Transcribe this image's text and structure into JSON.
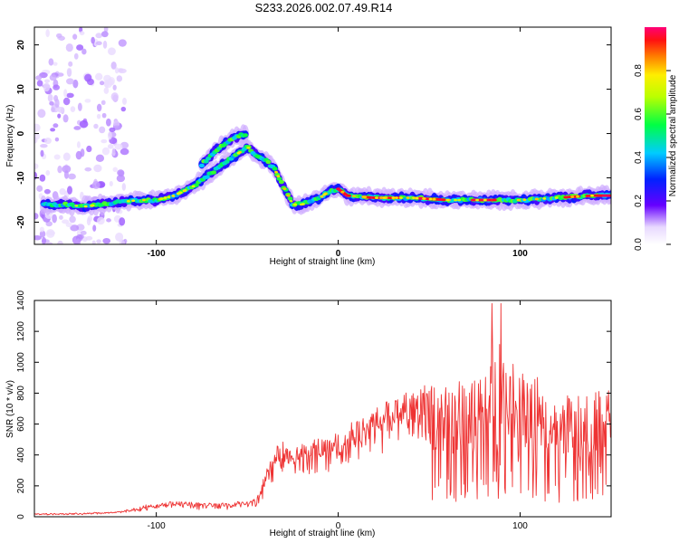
{
  "title": "S233.2026.002.07.49.R14",
  "chart_data": [
    {
      "type": "heatmap",
      "name": "spectrogram",
      "xlabel": "Height of straight line (km)",
      "ylabel": "Frequency (Hz)",
      "xlim": [
        -167,
        150
      ],
      "ylim": [
        -25,
        24
      ],
      "xticks": [
        -100,
        0,
        100
      ],
      "yticks": [
        20,
        10,
        0,
        -10,
        -20
      ],
      "colorbar": {
        "label": "Normalized spectral amplitude",
        "range": [
          0,
          1
        ],
        "ticks": [
          0.0,
          0.2,
          0.4,
          0.6,
          0.8
        ]
      },
      "ridge": {
        "x": [
          -160,
          -150,
          -140,
          -130,
          -120,
          -110,
          -100,
          -90,
          -80,
          -70,
          -60,
          -50,
          -45,
          -40,
          -35,
          -30,
          -25,
          -20,
          -10,
          -5,
          0,
          5,
          20,
          40,
          60,
          80,
          100,
          120,
          140,
          150
        ],
        "y": [
          -16,
          -16,
          -16.5,
          -16,
          -15.5,
          -15,
          -15,
          -14,
          -12,
          -9,
          -6,
          -3,
          -5,
          -6,
          -8,
          -12,
          -16,
          -16,
          -14.5,
          -13,
          -12.5,
          -14,
          -14.5,
          -14.5,
          -15,
          -15,
          -15,
          -14.5,
          -14,
          -14
        ]
      },
      "ridge_upper": {
        "x": [
          -75,
          -70,
          -65,
          -60,
          -55,
          -50
        ],
        "y": [
          -7,
          -5,
          -3,
          -1.5,
          -0.5,
          0
        ]
      }
    },
    {
      "type": "line",
      "name": "snr",
      "xlabel": "Height of straight line (km)",
      "ylabel": "SNR (10 * v/v)",
      "xlim": [
        -167,
        150
      ],
      "ylim": [
        0,
        1400
      ],
      "xticks": [
        -100,
        0,
        100
      ],
      "yticks": [
        0,
        200,
        400,
        600,
        800,
        1000,
        1200,
        1400
      ],
      "color": "#ee3333",
      "envelope": {
        "x": [
          -167,
          -140,
          -120,
          -105,
          -90,
          -75,
          -60,
          -45,
          -38,
          -32,
          -25,
          -15,
          -5,
          5,
          15,
          25,
          35,
          45,
          55,
          62,
          70,
          80,
          87,
          93,
          100,
          110,
          120,
          130,
          140,
          150
        ],
        "y": [
          20,
          25,
          35,
          80,
          100,
          90,
          90,
          120,
          350,
          500,
          450,
          500,
          520,
          600,
          650,
          750,
          800,
          850,
          900,
          950,
          850,
          950,
          1150,
          1050,
          950,
          900,
          850,
          800,
          800,
          850
        ]
      }
    }
  ]
}
